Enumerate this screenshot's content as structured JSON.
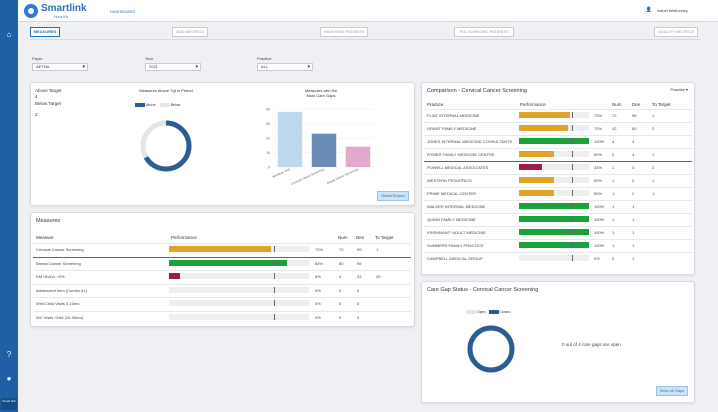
{
  "brand": {
    "name": "Smartlink",
    "sub": "Health",
    "section": "DASHBOARD"
  },
  "user": {
    "name": "Isabel Walloceley"
  },
  "rail": {
    "foot": "Smart link"
  },
  "tabs": [
    "MEASURES",
    "ADD METRICS",
    "HIGH RISK PATIENTS",
    "POLYCHRONIC PATIENTS",
    "QUALITY METRICS"
  ],
  "filters": [
    {
      "label": "Payer",
      "value": "AETNA"
    },
    {
      "label": "Year",
      "value": "2021"
    },
    {
      "label": "Practice",
      "value": "ALL"
    }
  ],
  "summary": {
    "above_target_label": "Above Target",
    "above_target_value": "4",
    "below_target_label": "Below Target",
    "below_target_value": "2",
    "donut_title": "Measures Above Tgt in Period",
    "legend": [
      "Above",
      "Below"
    ],
    "bar_title_1": "Measures with the",
    "bar_title_2": "Most Care Gaps",
    "detail_button": "Detail Report",
    "colors": {
      "above": "#2c5c94",
      "below": "#e2e4e7"
    }
  },
  "chart_data": {
    "type": "bar",
    "title": "Measures with the Most Care Gaps",
    "categories": [
      "Wellness Visit",
      "Cervical Cancer Screening",
      "Breast Cancer Screening"
    ],
    "values": [
      38,
      23,
      14
    ],
    "ylim": [
      0,
      40
    ],
    "yticks": [
      "40",
      "30",
      "20",
      "10",
      "0"
    ],
    "colors": [
      "#bdd7ef",
      "#6b8db5",
      "#e1a9cb"
    ]
  },
  "measures": {
    "title": "Measures",
    "headers": {
      "measure": "Measure",
      "performance": "Performance",
      "num": "Num",
      "den": "Den",
      "to_target": "To Target"
    },
    "rows": [
      {
        "name": "Cervical Cancer Screening",
        "pct": "73%",
        "fill": 0.73,
        "color": "#e0a526",
        "num": "72",
        "den": "99",
        "to_target": "1"
      },
      {
        "name": "Breast Cancer Screening",
        "pct": "84%",
        "fill": 0.84,
        "color": "#1aa33a",
        "num": "80",
        "den": "95",
        "to_target": ""
      },
      {
        "name": "DM HbA1c >9%",
        "pct": "8%",
        "fill": 0.08,
        "color": "#a01b4a",
        "num": "4",
        "den": "53",
        "to_target": "25"
      },
      {
        "name": "Adolescent Imm (Combo #1)",
        "pct": "0%",
        "fill": 0,
        "color": "#e0a526",
        "num": "0",
        "den": "0",
        "to_target": ""
      },
      {
        "name": "Well-Child Visits 0-15mo",
        "pct": "0%",
        "fill": 0,
        "color": "#e0a526",
        "num": "0",
        "den": "0",
        "to_target": ""
      },
      {
        "name": "WC Visits Child (15-30mo)",
        "pct": "0%",
        "fill": 0,
        "color": "#e0a526",
        "num": "0",
        "den": "0",
        "to_target": ""
      }
    ]
  },
  "comparison": {
    "title": "Comparison - Cervical Cancer Screening",
    "sort_label": "Practice",
    "headers": {
      "practice": "Practice",
      "performance": "Performance",
      "num": "Num",
      "den": "Den",
      "to_target": "To Target"
    },
    "rows": [
      {
        "name": "FLINT INTERNAL MEDICINE",
        "pct": "73%",
        "fill": 0.73,
        "color": "#e0a526",
        "num": "72",
        "den": "99",
        "to_target": "1"
      },
      {
        "name": "GRANT FAMILY MEDICINE",
        "pct": "70%",
        "fill": 0.7,
        "color": "#e0a526",
        "num": "42",
        "den": "60",
        "to_target": "2"
      },
      {
        "name": "JONES INTERNAL MEDICINE CONSULTANTS",
        "pct": "100%",
        "fill": 1.0,
        "color": "#1aa33a",
        "num": "4",
        "den": "4",
        "to_target": ""
      },
      {
        "name": "RYMER FAMILY MEDICINE CENTRE",
        "pct": "50%",
        "fill": 0.5,
        "color": "#e0a526",
        "num": "2",
        "den": "4",
        "to_target": "1"
      },
      {
        "name": "POWELL MEDICAL ASSOCIATES",
        "pct": "33%",
        "fill": 0.33,
        "color": "#a01b4a",
        "num": "1",
        "den": "3",
        "to_target": "2"
      },
      {
        "name": "WESTERN PEDIATRICS",
        "pct": "50%",
        "fill": 0.5,
        "color": "#e0a526",
        "num": "1",
        "den": "2",
        "to_target": "1"
      },
      {
        "name": "PRIME MEDICAL CENTER",
        "pct": "50%",
        "fill": 0.5,
        "color": "#e0a526",
        "num": "1",
        "den": "2",
        "to_target": "1"
      },
      {
        "name": "WALKER INTERNAL MEDICINE",
        "pct": "100%",
        "fill": 1.0,
        "color": "#1aa33a",
        "num": "1",
        "den": "1",
        "to_target": ""
      },
      {
        "name": "QUINN FAMILY MEDICINE",
        "pct": "100%",
        "fill": 1.0,
        "color": "#1aa33a",
        "num": "1",
        "den": "1",
        "to_target": ""
      },
      {
        "name": "KRISHNANT* ADULT MEDICINE",
        "pct": "100%",
        "fill": 1.0,
        "color": "#1aa33a",
        "num": "1",
        "den": "1",
        "to_target": ""
      },
      {
        "name": "SUMMERS FAMILY PRACTICE",
        "pct": "100%",
        "fill": 1.0,
        "color": "#1aa33a",
        "num": "1",
        "den": "1",
        "to_target": ""
      },
      {
        "name": "CAMPBELL MEDICAL GROUP",
        "pct": "0%",
        "fill": 0,
        "color": "#e0a526",
        "num": "0",
        "den": "1",
        "to_target": ""
      }
    ]
  },
  "caregap": {
    "title": "Care Gap Status - Cervical Cancer Screening",
    "legend": [
      "Open",
      "Closed"
    ],
    "summary": "0 out of 4 care gaps are open",
    "button": "View all Gaps",
    "closed_fraction": 1.0,
    "colors": {
      "open": "#e2e4e7",
      "closed": "#2c5c94"
    }
  }
}
